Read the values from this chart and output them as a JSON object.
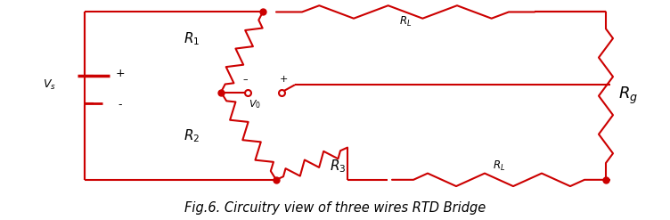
{
  "color": "#cc0000",
  "bg_color": "#ffffff",
  "caption": "Fig.6. Circuitry view of three wires RTD Bridge",
  "caption_fontsize": 10.5,
  "fig_width": 7.52,
  "fig_height": 2.47,
  "dpi": 100
}
